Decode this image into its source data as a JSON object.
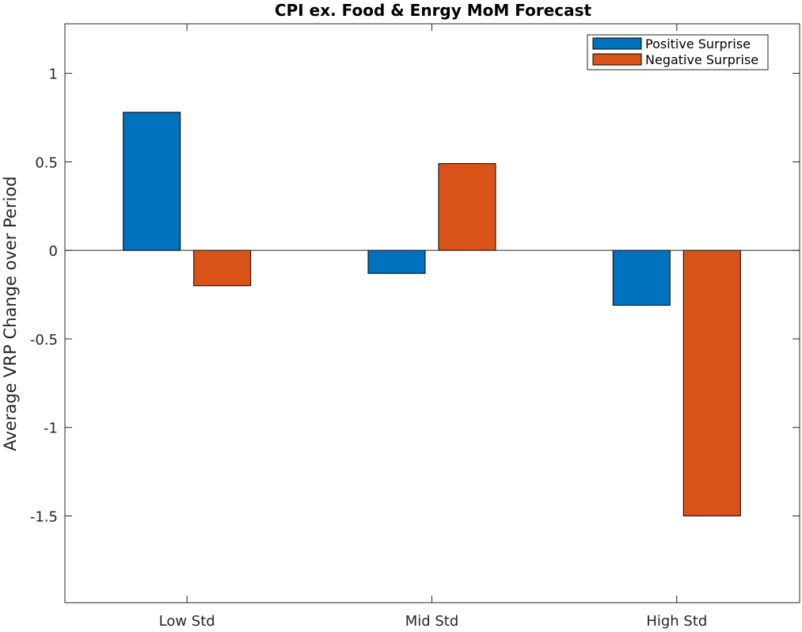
{
  "chart_data": {
    "type": "bar",
    "title": "CPI ex. Food & Enrgy MoM Forecast",
    "xlabel": "",
    "ylabel": "Average VRP Change over Period",
    "categories": [
      "Low Std",
      "Mid Std",
      "High Std"
    ],
    "series": [
      {
        "name": "Positive Surprise",
        "color": "#0072BD",
        "values": [
          0.78,
          -0.13,
          -0.31
        ]
      },
      {
        "name": "Negative Surprise",
        "color": "#D95319",
        "values": [
          -0.2,
          0.49,
          -1.5
        ]
      }
    ],
    "ylim": [
      -1.99,
      1.28
    ],
    "yticks": [
      -1.5,
      -1,
      -0.5,
      0,
      0.5,
      1
    ],
    "ytick_labels": [
      "-1.5",
      "-1",
      "-0.5",
      "0",
      "0.5",
      "1"
    ],
    "grid": false,
    "legend_position": "top-right"
  }
}
